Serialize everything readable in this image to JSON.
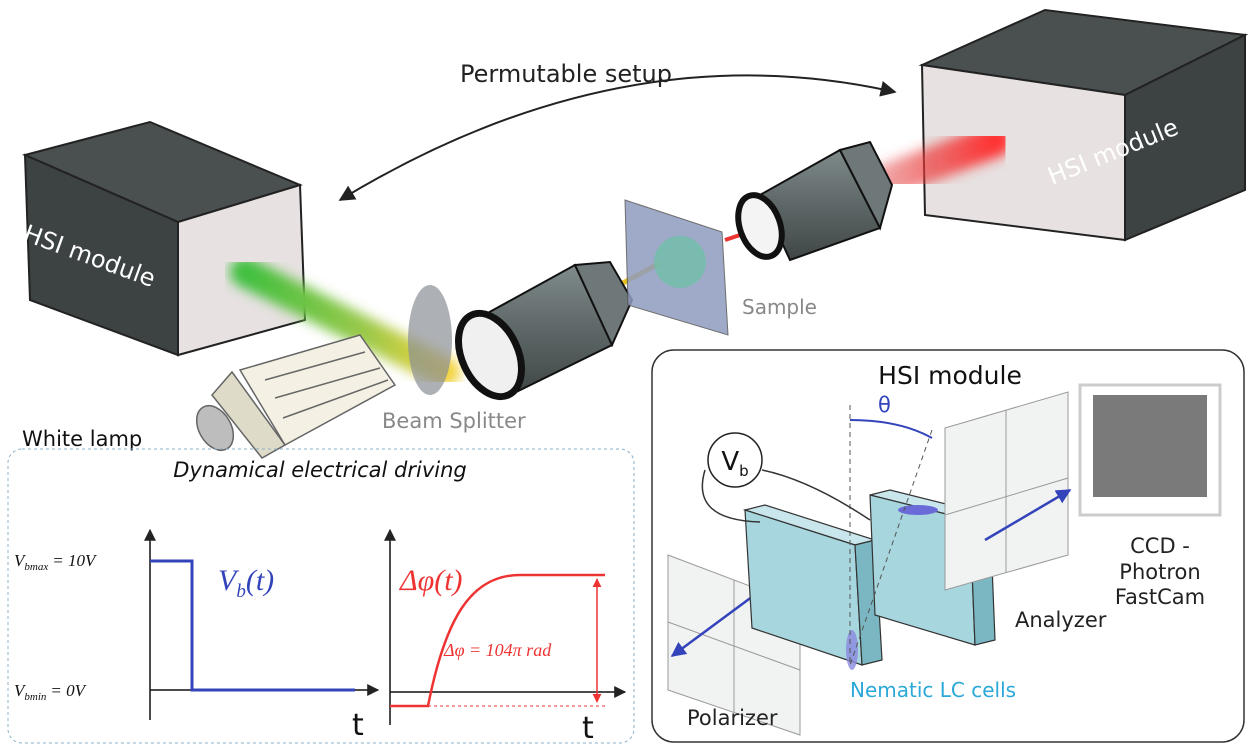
{
  "setup": {
    "arrow_label": "Permutable setup",
    "left_module": "HSI module",
    "right_module": "HSI module",
    "sample": "Sample",
    "beam_splitter": "Beam Splitter",
    "lamp": "White lamp"
  },
  "driving": {
    "title": "Dynamical electrical driving",
    "vmax": {
      "symbol": "V",
      "subscript": "bmax",
      "value": "= 10V"
    },
    "vmin": {
      "symbol": "V",
      "subscript": "bmin",
      "value": "= 0V"
    },
    "vb_label": {
      "symbol": "V",
      "subscript": "b",
      "argument": "(t)"
    },
    "phase_label": "Δφ(t)",
    "phase_value": "Δφ = 104π rad",
    "time_axis": [
      "t",
      "t"
    ]
  },
  "hsi": {
    "title": "HSI module",
    "angle": "θ",
    "voltage": {
      "symbol": "V",
      "subscript": "b"
    },
    "camera": [
      "CCD -",
      "Photron",
      "FastCam"
    ],
    "analyzer": "Analyzer",
    "lc_cells": "Nematic LC cells",
    "polarizer": "Polarizer"
  }
}
